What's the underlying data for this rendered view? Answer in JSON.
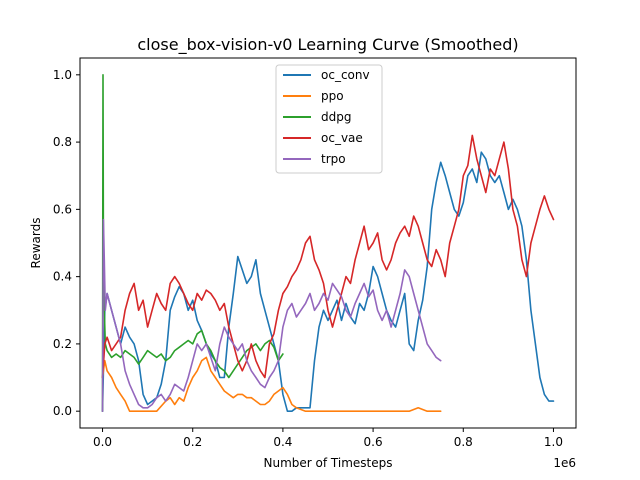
{
  "chart_data": {
    "type": "line",
    "title": "close_box-vision-v0 Learning Curve (Smoothed)",
    "xlabel": "Number of Timesteps",
    "ylabel": "Rewards",
    "x_offset_label": "1e6",
    "xlim": [
      -0.05,
      1.05
    ],
    "ylim": [
      -0.05,
      1.05
    ],
    "x_ticks": [
      0.0,
      0.2,
      0.4,
      0.6,
      0.8,
      1.0
    ],
    "x_tick_labels": [
      "0.0",
      "0.2",
      "0.4",
      "0.6",
      "0.8",
      "1.0"
    ],
    "y_ticks": [
      0.0,
      0.2,
      0.4,
      0.6,
      0.8,
      1.0
    ],
    "y_tick_labels": [
      "0.0",
      "0.2",
      "0.4",
      "0.6",
      "0.8",
      "1.0"
    ],
    "grid": false,
    "legend_position": "top-center",
    "series": [
      {
        "name": "oc_conv",
        "color": "#1f77b4",
        "x": [
          0.0,
          0.005,
          0.01,
          0.02,
          0.03,
          0.04,
          0.05,
          0.06,
          0.07,
          0.08,
          0.09,
          0.1,
          0.11,
          0.12,
          0.13,
          0.14,
          0.15,
          0.16,
          0.17,
          0.18,
          0.19,
          0.2,
          0.21,
          0.22,
          0.23,
          0.24,
          0.25,
          0.26,
          0.27,
          0.28,
          0.29,
          0.3,
          0.31,
          0.32,
          0.33,
          0.34,
          0.35,
          0.36,
          0.37,
          0.38,
          0.39,
          0.4,
          0.41,
          0.42,
          0.43,
          0.44,
          0.45,
          0.46,
          0.47,
          0.48,
          0.49,
          0.5,
          0.51,
          0.52,
          0.53,
          0.54,
          0.55,
          0.56,
          0.57,
          0.58,
          0.59,
          0.6,
          0.61,
          0.62,
          0.63,
          0.64,
          0.65,
          0.66,
          0.67,
          0.68,
          0.69,
          0.7,
          0.71,
          0.72,
          0.73,
          0.74,
          0.75,
          0.76,
          0.77,
          0.78,
          0.79,
          0.8,
          0.81,
          0.82,
          0.83,
          0.84,
          0.85,
          0.86,
          0.87,
          0.88,
          0.89,
          0.9,
          0.91,
          0.92,
          0.93,
          0.94,
          0.95,
          0.96,
          0.97,
          0.98,
          0.99,
          1.0
        ],
        "y": [
          0.0,
          0.3,
          0.35,
          0.3,
          0.25,
          0.2,
          0.25,
          0.22,
          0.2,
          0.15,
          0.05,
          0.02,
          0.03,
          0.04,
          0.08,
          0.15,
          0.3,
          0.34,
          0.37,
          0.35,
          0.3,
          0.33,
          0.27,
          0.24,
          0.2,
          0.17,
          0.15,
          0.1,
          0.1,
          0.25,
          0.35,
          0.46,
          0.42,
          0.38,
          0.4,
          0.45,
          0.35,
          0.3,
          0.25,
          0.2,
          0.15,
          0.05,
          0.0,
          0.0,
          0.01,
          0.01,
          0.01,
          0.01,
          0.15,
          0.25,
          0.3,
          0.27,
          0.3,
          0.33,
          0.27,
          0.32,
          0.28,
          0.26,
          0.32,
          0.3,
          0.35,
          0.43,
          0.4,
          0.35,
          0.3,
          0.27,
          0.25,
          0.3,
          0.35,
          0.2,
          0.18,
          0.27,
          0.33,
          0.43,
          0.6,
          0.68,
          0.74,
          0.7,
          0.65,
          0.6,
          0.58,
          0.62,
          0.7,
          0.72,
          0.68,
          0.77,
          0.75,
          0.7,
          0.68,
          0.7,
          0.65,
          0.6,
          0.63,
          0.6,
          0.55,
          0.45,
          0.3,
          0.2,
          0.1,
          0.05,
          0.03,
          0.03
        ]
      },
      {
        "name": "ppo",
        "color": "#ff7f0e",
        "x": [
          0.0,
          0.005,
          0.01,
          0.02,
          0.03,
          0.04,
          0.05,
          0.06,
          0.07,
          0.08,
          0.1,
          0.12,
          0.14,
          0.15,
          0.16,
          0.17,
          0.18,
          0.19,
          0.2,
          0.21,
          0.22,
          0.23,
          0.24,
          0.25,
          0.26,
          0.27,
          0.28,
          0.29,
          0.3,
          0.31,
          0.32,
          0.33,
          0.34,
          0.35,
          0.36,
          0.37,
          0.38,
          0.39,
          0.4,
          0.41,
          0.42,
          0.43,
          0.45,
          0.5,
          0.55,
          0.6,
          0.65,
          0.68,
          0.7,
          0.72,
          0.75
        ],
        "y": [
          0.1,
          0.15,
          0.12,
          0.1,
          0.07,
          0.05,
          0.03,
          0.0,
          0.0,
          0.0,
          0.0,
          0.0,
          0.03,
          0.04,
          0.02,
          0.04,
          0.03,
          0.07,
          0.1,
          0.12,
          0.15,
          0.16,
          0.12,
          0.1,
          0.08,
          0.06,
          0.05,
          0.04,
          0.05,
          0.05,
          0.04,
          0.04,
          0.03,
          0.02,
          0.02,
          0.03,
          0.05,
          0.06,
          0.07,
          0.05,
          0.02,
          0.01,
          0.0,
          0.0,
          0.0,
          0.0,
          0.0,
          0.0,
          0.01,
          0.0,
          0.0
        ]
      },
      {
        "name": "ddpg",
        "color": "#2ca02c",
        "x": [
          0.0,
          0.001,
          0.002,
          0.004,
          0.006,
          0.01,
          0.02,
          0.03,
          0.04,
          0.05,
          0.06,
          0.07,
          0.08,
          0.09,
          0.1,
          0.11,
          0.12,
          0.13,
          0.14,
          0.15,
          0.16,
          0.17,
          0.18,
          0.19,
          0.2,
          0.21,
          0.22,
          0.23,
          0.24,
          0.25,
          0.26,
          0.27,
          0.28,
          0.29,
          0.3,
          0.31,
          0.32,
          0.33,
          0.34,
          0.35,
          0.36,
          0.37,
          0.38,
          0.39,
          0.4
        ],
        "y": [
          0.0,
          1.0,
          0.5,
          0.3,
          0.2,
          0.18,
          0.16,
          0.17,
          0.16,
          0.18,
          0.17,
          0.16,
          0.14,
          0.16,
          0.18,
          0.17,
          0.16,
          0.17,
          0.15,
          0.16,
          0.18,
          0.19,
          0.2,
          0.21,
          0.2,
          0.23,
          0.24,
          0.2,
          0.18,
          0.15,
          0.13,
          0.12,
          0.1,
          0.12,
          0.14,
          0.16,
          0.18,
          0.19,
          0.2,
          0.18,
          0.2,
          0.21,
          0.19,
          0.15,
          0.17
        ]
      },
      {
        "name": "oc_vae",
        "color": "#d62728",
        "x": [
          0.0,
          0.005,
          0.01,
          0.02,
          0.03,
          0.04,
          0.05,
          0.06,
          0.07,
          0.08,
          0.09,
          0.1,
          0.11,
          0.12,
          0.13,
          0.14,
          0.15,
          0.16,
          0.17,
          0.18,
          0.19,
          0.2,
          0.21,
          0.22,
          0.23,
          0.24,
          0.25,
          0.26,
          0.27,
          0.28,
          0.29,
          0.3,
          0.31,
          0.32,
          0.33,
          0.34,
          0.35,
          0.36,
          0.37,
          0.38,
          0.39,
          0.4,
          0.41,
          0.42,
          0.43,
          0.44,
          0.45,
          0.46,
          0.47,
          0.48,
          0.49,
          0.5,
          0.51,
          0.52,
          0.53,
          0.54,
          0.55,
          0.56,
          0.57,
          0.58,
          0.59,
          0.6,
          0.61,
          0.62,
          0.63,
          0.64,
          0.65,
          0.66,
          0.67,
          0.68,
          0.69,
          0.7,
          0.71,
          0.72,
          0.73,
          0.74,
          0.75,
          0.76,
          0.77,
          0.78,
          0.79,
          0.8,
          0.81,
          0.82,
          0.83,
          0.84,
          0.85,
          0.86,
          0.87,
          0.88,
          0.89,
          0.9,
          0.91,
          0.92,
          0.93,
          0.94,
          0.95,
          0.96,
          0.97,
          0.98,
          0.99,
          1.0
        ],
        "y": [
          0.1,
          0.2,
          0.22,
          0.18,
          0.2,
          0.22,
          0.3,
          0.35,
          0.38,
          0.3,
          0.33,
          0.25,
          0.3,
          0.35,
          0.32,
          0.3,
          0.38,
          0.4,
          0.38,
          0.35,
          0.32,
          0.3,
          0.35,
          0.33,
          0.36,
          0.35,
          0.33,
          0.3,
          0.32,
          0.25,
          0.2,
          0.15,
          0.12,
          0.15,
          0.2,
          0.15,
          0.12,
          0.1,
          0.2,
          0.23,
          0.3,
          0.35,
          0.37,
          0.4,
          0.42,
          0.45,
          0.5,
          0.52,
          0.45,
          0.42,
          0.38,
          0.3,
          0.25,
          0.3,
          0.35,
          0.4,
          0.38,
          0.45,
          0.5,
          0.55,
          0.48,
          0.5,
          0.53,
          0.45,
          0.42,
          0.45,
          0.5,
          0.53,
          0.55,
          0.52,
          0.58,
          0.55,
          0.5,
          0.45,
          0.43,
          0.48,
          0.45,
          0.4,
          0.5,
          0.55,
          0.6,
          0.7,
          0.73,
          0.82,
          0.75,
          0.7,
          0.65,
          0.72,
          0.7,
          0.75,
          0.8,
          0.72,
          0.6,
          0.55,
          0.45,
          0.4,
          0.5,
          0.55,
          0.6,
          0.64,
          0.6,
          0.57
        ]
      },
      {
        "name": "trpo",
        "color": "#9467bd",
        "x": [
          0.0,
          0.002,
          0.004,
          0.006,
          0.01,
          0.02,
          0.03,
          0.04,
          0.05,
          0.06,
          0.07,
          0.08,
          0.09,
          0.1,
          0.11,
          0.12,
          0.13,
          0.14,
          0.15,
          0.16,
          0.17,
          0.18,
          0.19,
          0.2,
          0.21,
          0.22,
          0.23,
          0.24,
          0.25,
          0.26,
          0.27,
          0.28,
          0.29,
          0.3,
          0.31,
          0.32,
          0.33,
          0.34,
          0.35,
          0.36,
          0.37,
          0.38,
          0.39,
          0.4,
          0.41,
          0.42,
          0.43,
          0.44,
          0.45,
          0.46,
          0.47,
          0.48,
          0.49,
          0.5,
          0.51,
          0.52,
          0.53,
          0.54,
          0.55,
          0.56,
          0.57,
          0.58,
          0.59,
          0.6,
          0.61,
          0.62,
          0.63,
          0.64,
          0.65,
          0.66,
          0.67,
          0.68,
          0.69,
          0.7,
          0.71,
          0.72,
          0.73,
          0.74,
          0.75
        ],
        "y": [
          0.0,
          0.57,
          0.45,
          0.3,
          0.35,
          0.3,
          0.25,
          0.2,
          0.12,
          0.08,
          0.05,
          0.02,
          0.01,
          0.01,
          0.02,
          0.04,
          0.05,
          0.03,
          0.05,
          0.08,
          0.07,
          0.06,
          0.1,
          0.15,
          0.2,
          0.18,
          0.2,
          0.16,
          0.12,
          0.2,
          0.25,
          0.22,
          0.2,
          0.18,
          0.2,
          0.15,
          0.12,
          0.1,
          0.08,
          0.07,
          0.1,
          0.12,
          0.15,
          0.25,
          0.3,
          0.32,
          0.28,
          0.3,
          0.32,
          0.35,
          0.3,
          0.32,
          0.35,
          0.33,
          0.38,
          0.36,
          0.34,
          0.3,
          0.28,
          0.32,
          0.35,
          0.38,
          0.34,
          0.36,
          0.3,
          0.27,
          0.3,
          0.25,
          0.3,
          0.35,
          0.42,
          0.4,
          0.35,
          0.3,
          0.25,
          0.2,
          0.18,
          0.16,
          0.15
        ]
      }
    ]
  }
}
